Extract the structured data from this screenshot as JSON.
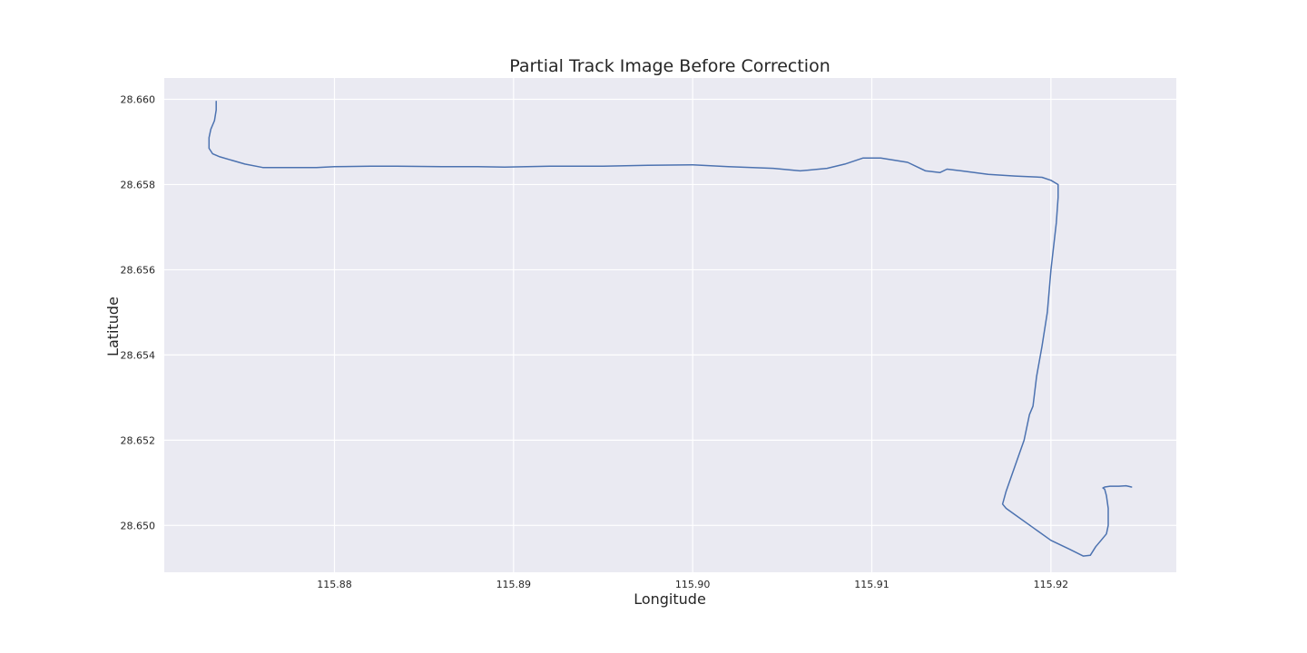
{
  "chart_data": {
    "type": "line",
    "title": "Partial Track Image Before Correction",
    "xlabel": "Longitude",
    "ylabel": "Latitude",
    "xlim": [
      115.8705,
      115.927
    ],
    "ylim": [
      28.6489,
      28.6605
    ],
    "xticks": [
      "115.88",
      "115.89",
      "115.90",
      "115.91",
      "115.92"
    ],
    "xtick_values": [
      115.88,
      115.89,
      115.9,
      115.91,
      115.92
    ],
    "yticks": [
      "28.650",
      "28.652",
      "28.654",
      "28.656",
      "28.658",
      "28.660"
    ],
    "ytick_values": [
      28.65,
      28.652,
      28.654,
      28.656,
      28.658,
      28.66
    ],
    "grid": true,
    "colors": {
      "background": "#eaeaf2",
      "grid": "#ffffff",
      "line": "#4c72b0"
    },
    "series": [
      {
        "x": [
          115.8734,
          115.8734,
          115.8733,
          115.8731,
          115.873,
          115.873,
          115.8732,
          115.8736,
          115.875,
          115.876,
          115.8775,
          115.879,
          115.88,
          115.882,
          115.8835,
          115.886,
          115.888,
          115.8895,
          115.892,
          115.895,
          115.8975,
          115.9,
          115.902,
          115.9045,
          115.906,
          115.9075,
          115.9085,
          115.9095,
          115.9105,
          115.912,
          115.913,
          115.9138,
          115.9142,
          115.915,
          115.9165,
          115.918,
          115.9195,
          115.92,
          115.9204,
          115.9204,
          115.9203,
          115.92,
          115.9198,
          115.9195,
          115.9192,
          115.919,
          115.9188,
          115.9185,
          115.918,
          115.9175,
          115.9173,
          115.9173,
          115.9175,
          115.918,
          115.919,
          115.92,
          115.921,
          115.9218,
          115.9222,
          115.9225,
          115.9228,
          115.9231,
          115.9232,
          115.9232,
          115.9231,
          115.923,
          115.9229,
          115.923,
          115.9233,
          115.9238,
          115.9242,
          115.9245
        ],
        "y": [
          28.65995,
          28.65975,
          28.6595,
          28.6593,
          28.6591,
          28.65885,
          28.65872,
          28.65865,
          28.65848,
          28.6584,
          28.6584,
          28.6584,
          28.65842,
          28.65843,
          28.65843,
          28.65842,
          28.65842,
          28.65841,
          28.65843,
          28.65843,
          28.65845,
          28.65846,
          28.65842,
          28.65838,
          28.65832,
          28.65838,
          28.65848,
          28.65862,
          28.65862,
          28.65852,
          28.65832,
          28.65828,
          28.65836,
          28.65832,
          28.65824,
          28.6582,
          28.65817,
          28.6581,
          28.658,
          28.6577,
          28.6571,
          28.656,
          28.655,
          28.6542,
          28.6535,
          28.6528,
          28.6526,
          28.652,
          28.6514,
          28.6508,
          28.6505,
          28.6505,
          28.6504,
          28.65025,
          28.64995,
          28.64965,
          28.64945,
          28.64928,
          28.6493,
          28.6495,
          28.64965,
          28.6498,
          28.65,
          28.6504,
          28.6507,
          28.65085,
          28.65088,
          28.6509,
          28.65092,
          28.65092,
          28.65093,
          28.6509
        ]
      }
    ]
  }
}
